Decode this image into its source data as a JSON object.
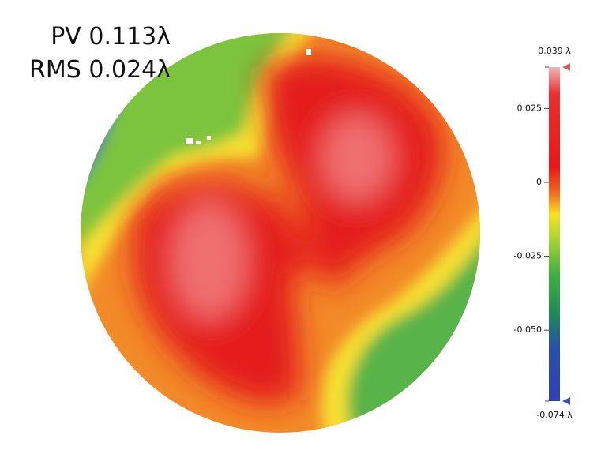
{
  "stats": {
    "pv": "PV 0.113λ",
    "rms": "RMS 0.024λ"
  },
  "colorbar": {
    "max": {
      "value": 0.039,
      "label": "0.039 λ"
    },
    "min": {
      "value": -0.074,
      "label": "-0.074 λ"
    },
    "ticks": [
      0.025,
      0,
      -0.025,
      {
        "value": -0.05,
        "label": "-0.050"
      }
    ]
  }
}
